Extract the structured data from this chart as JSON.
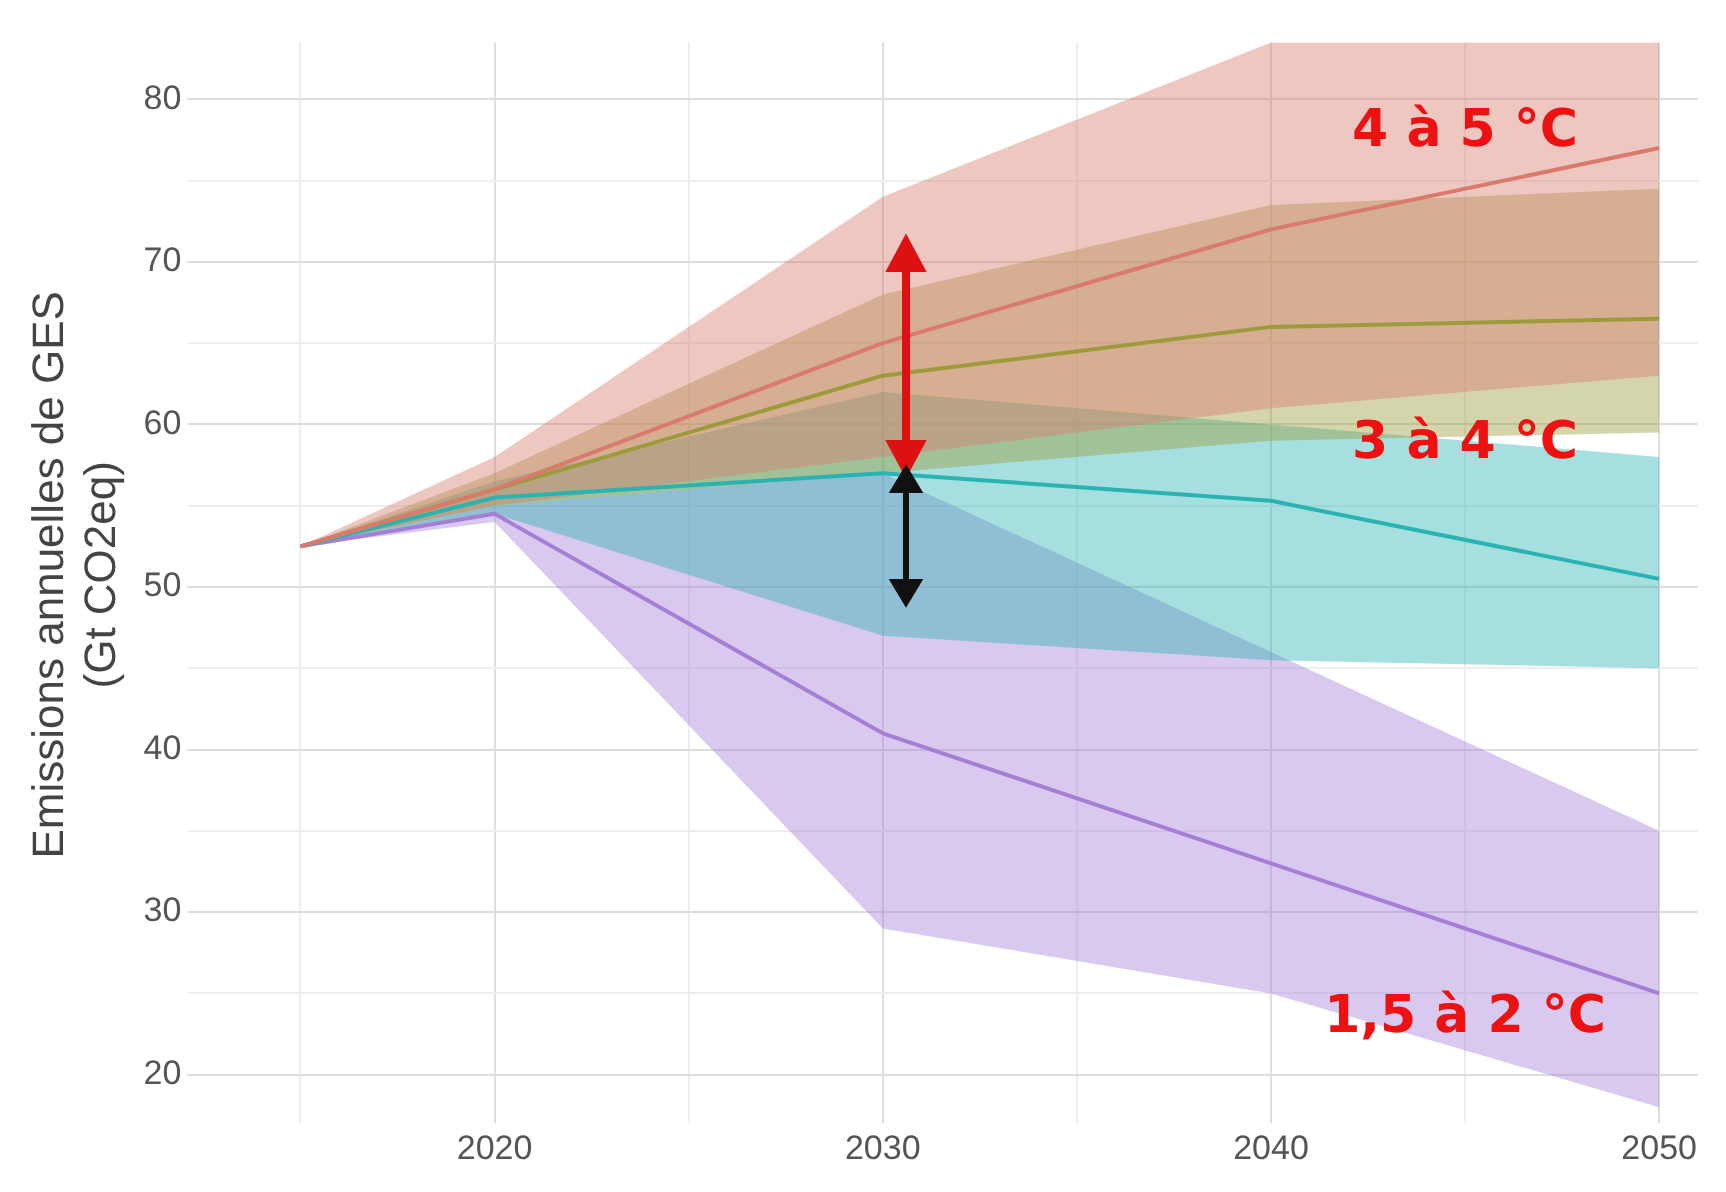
{
  "chart_data": {
    "type": "line",
    "ylabel": "Emissions annuelles de GES\n(Gt CO2eq)",
    "x": [
      2015,
      2020,
      2030,
      2040,
      2050
    ],
    "xlim": [
      2012.5,
      2051
    ],
    "ylim": [
      18,
      83.5
    ],
    "xticks": [
      {
        "value": 2015,
        "label": null
      },
      2020,
      {
        "value": 2025,
        "label": null
      },
      2030,
      {
        "value": 2035,
        "label": null
      },
      2040,
      {
        "value": 2045,
        "label": null
      },
      2050
    ],
    "yticks": [
      20,
      {
        "value": 25,
        "label": null
      },
      30,
      {
        "value": 35,
        "label": null
      },
      40,
      {
        "value": 45,
        "label": null
      },
      50,
      {
        "value": 55,
        "label": null
      },
      60,
      {
        "value": 65,
        "label": null
      },
      70,
      {
        "value": 75,
        "label": null
      },
      80
    ],
    "grid": true,
    "legend": false,
    "marker": "none",
    "line_style": "solid",
    "series": [
      {
        "name": "4 à 5 °C",
        "color": "#d97a6c",
        "values": [
          52.5,
          56,
          65,
          72,
          77
        ],
        "lower": [
          52.5,
          55,
          58,
          61,
          63
        ],
        "upper": [
          52.5,
          58,
          74,
          83.5,
          83.5
        ]
      },
      {
        "name": "3 à 4 °C",
        "color": "#9c9a3a",
        "values": [
          52.5,
          56,
          63,
          66,
          66.5
        ],
        "lower": [
          52.5,
          55,
          57,
          59,
          59.5
        ],
        "upper": [
          52.5,
          57,
          68,
          73.5,
          74.5
        ]
      },
      {
        "color": "#2ab3b3",
        "values": [
          52.5,
          55.5,
          57,
          55.3,
          50.5
        ],
        "lower": [
          52.5,
          54.5,
          47,
          45.5,
          45
        ],
        "upper": [
          52.5,
          56.5,
          62,
          60,
          58
        ]
      },
      {
        "name": "1,5 à 2 °C",
        "color": "#a57fd6",
        "values": [
          52.5,
          54.5,
          41,
          33,
          25
        ],
        "lower": [
          52.5,
          54,
          29,
          25,
          18
        ],
        "upper": [
          52.5,
          55,
          57,
          46,
          35
        ]
      }
    ]
  }
}
